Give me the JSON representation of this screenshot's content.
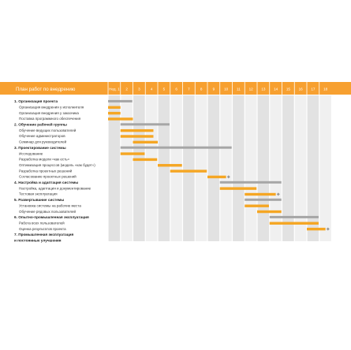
{
  "chart_data": {
    "type": "gantt",
    "title": "План работ по внедрению",
    "weeks": [
      "Нед. 1",
      "2",
      "3",
      "4",
      "5",
      "6",
      "7",
      "8",
      "9",
      "10",
      "11",
      "12",
      "13",
      "14",
      "15",
      "16",
      "17",
      "18"
    ],
    "colors": {
      "header": "#f7a030",
      "summary_bar": "#a6a6a6",
      "task_bar": "#f5a623",
      "column_shade": "#e2e2e2",
      "column_light": "#f0f0f0",
      "milestone": "#999999"
    },
    "tasks": [
      {
        "label": "1. Организация проекта",
        "kind": "summary",
        "start": 1,
        "end": 2.95
      },
      {
        "label": "Организация внедрения у исполнителя",
        "kind": "task",
        "start": 1,
        "end": 2
      },
      {
        "label": "Организация внедрения у заказчика",
        "kind": "task",
        "start": 1,
        "end": 2
      },
      {
        "label": "Поставка программного обеспечения",
        "kind": "task",
        "start": 1,
        "end": 3
      },
      {
        "label": "2. Обучение рабочей группы",
        "kind": "summary",
        "start": 2,
        "end": 5.95
      },
      {
        "label": "Обучение ведущих пользователей",
        "kind": "task",
        "start": 2,
        "end": 4.65
      },
      {
        "label": "Обучение администраторов",
        "kind": "task",
        "start": 2,
        "end": 4.65
      },
      {
        "label": "Семинар для руководителей",
        "kind": "task",
        "start": 3,
        "end": 5
      },
      {
        "label": "3. Проектирование системы",
        "kind": "summary",
        "start": 2,
        "end": 10.95
      },
      {
        "label": "Исследование",
        "kind": "task",
        "start": 2,
        "end": 3.95
      },
      {
        "label": "Разработка модели «как есть»",
        "kind": "task",
        "start": 3,
        "end": 4.95
      },
      {
        "label": "Оптимизация процессов (модель «как будет»)",
        "kind": "task",
        "start": 5,
        "end": 6.95
      },
      {
        "label": "Разработка проектных решений",
        "kind": "task",
        "start": 6,
        "end": 8.95
      },
      {
        "label": "Согласование проектных решений",
        "kind": "task",
        "start": 9,
        "end": 10.5,
        "milestone": 10.7
      },
      {
        "label": "4. Настройка и адаптация системы",
        "kind": "summary",
        "start": 10,
        "end": 14.95
      },
      {
        "label": "Настройка, адаптация и документирование",
        "kind": "task",
        "start": 10,
        "end": 12.95
      },
      {
        "label": "Тестовая эксплуатация",
        "kind": "task",
        "start": 12,
        "end": 14.5,
        "milestone": 14.7
      },
      {
        "label": "5. Развертывание системы",
        "kind": "summary",
        "start": 12,
        "end": 14.95
      },
      {
        "label": "Установка системы на рабочие места",
        "kind": "task",
        "start": 12,
        "end": 13.95
      },
      {
        "label": "Обучение рядовых пользователей",
        "kind": "task",
        "start": 13,
        "end": 14.95
      },
      {
        "label": "6. Опытно-промышленная эксплуатация",
        "kind": "summary",
        "start": 14,
        "end": 17.95
      },
      {
        "label": "Работа всех пользователей",
        "kind": "task",
        "start": 14,
        "end": 17.95
      },
      {
        "label": "Оценка результатов проекта",
        "kind": "task",
        "start": 17,
        "end": 18.5,
        "milestone": 18.7
      },
      {
        "label": "7. Промышленная эксплуатация",
        "kind": "summary-label"
      },
      {
        "label": "и постоянные улучшения",
        "kind": "summary-label"
      }
    ]
  }
}
